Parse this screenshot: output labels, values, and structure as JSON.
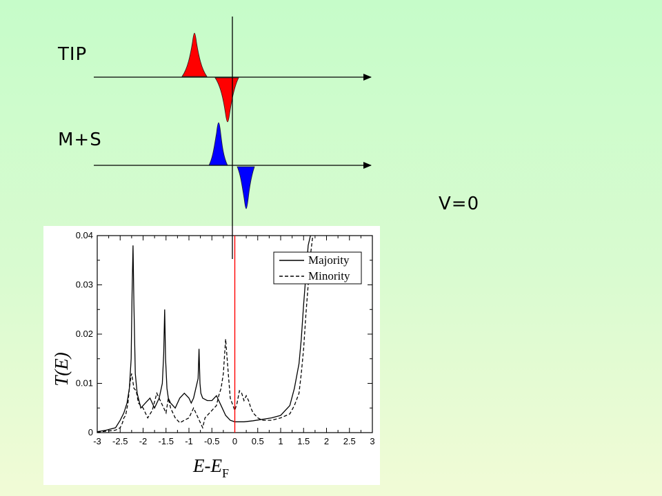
{
  "labels": {
    "tip": "TIP",
    "ms": "M+S",
    "bias": "V=0"
  },
  "colors": {
    "tip_lobes": "#ff0000",
    "ms_lobes": "#0000ff",
    "fermi_line": "#ff0000",
    "background_top": "#c6fcc9",
    "background_bottom": "#f1fbd6"
  },
  "chart_data": {
    "type": "line",
    "title": "",
    "xlabel_main": "E-E",
    "xlabel_sub": "F",
    "ylabel": "T(E)",
    "xlim": [
      -3,
      3
    ],
    "ylim": [
      0,
      0.04
    ],
    "xticks": [
      "-3",
      "-2.5",
      "-2",
      "-1.5",
      "-1",
      "-0.5",
      "0",
      "0.5",
      "1",
      "1.5",
      "2",
      "2.5",
      "3"
    ],
    "yticks": [
      "0",
      "0.01",
      "0.02",
      "0.03",
      "0.04"
    ],
    "legend_position": "top-right",
    "grid": false,
    "series": [
      {
        "name": "Majority",
        "style": "solid",
        "x": [
          -3.0,
          -2.8,
          -2.6,
          -2.5,
          -2.42,
          -2.35,
          -2.3,
          -2.26,
          -2.24,
          -2.22,
          -2.2,
          -2.17,
          -2.13,
          -2.05,
          -1.95,
          -1.85,
          -1.75,
          -1.65,
          -1.58,
          -1.55,
          -1.53,
          -1.51,
          -1.48,
          -1.45,
          -1.4,
          -1.3,
          -1.2,
          -1.1,
          -1.0,
          -0.95,
          -0.9,
          -0.85,
          -0.8,
          -0.78,
          -0.76,
          -0.74,
          -0.7,
          -0.6,
          -0.5,
          -0.4,
          -0.3,
          -0.2,
          -0.1,
          0.0,
          0.2,
          0.4,
          0.6,
          0.8,
          1.0,
          1.2,
          1.3,
          1.4,
          1.45,
          1.5,
          1.55,
          1.6,
          1.65
        ],
        "y": [
          0.0002,
          0.0005,
          0.001,
          0.0025,
          0.004,
          0.006,
          0.009,
          0.015,
          0.028,
          0.038,
          0.026,
          0.012,
          0.008,
          0.005,
          0.006,
          0.007,
          0.005,
          0.007,
          0.01,
          0.016,
          0.025,
          0.015,
          0.009,
          0.007,
          0.006,
          0.005,
          0.007,
          0.008,
          0.007,
          0.006,
          0.007,
          0.009,
          0.011,
          0.017,
          0.01,
          0.008,
          0.007,
          0.0065,
          0.0065,
          0.0075,
          0.0055,
          0.0035,
          0.0025,
          0.0022,
          0.0022,
          0.0024,
          0.0027,
          0.003,
          0.0035,
          0.0055,
          0.009,
          0.014,
          0.019,
          0.026,
          0.032,
          0.038,
          0.04
        ]
      },
      {
        "name": "Minority",
        "style": "dashed",
        "x": [
          -3.0,
          -2.8,
          -2.6,
          -2.5,
          -2.45,
          -2.42,
          -2.38,
          -2.33,
          -2.3,
          -2.27,
          -2.25,
          -2.2,
          -2.15,
          -2.1,
          -2.0,
          -1.9,
          -1.8,
          -1.7,
          -1.6,
          -1.5,
          -1.45,
          -1.4,
          -1.3,
          -1.2,
          -1.1,
          -1.0,
          -0.9,
          -0.8,
          -0.7,
          -0.65,
          -0.6,
          -0.5,
          -0.4,
          -0.35,
          -0.3,
          -0.25,
          -0.2,
          -0.15,
          -0.1,
          0.0,
          0.05,
          0.1,
          0.15,
          0.2,
          0.25,
          0.3,
          0.35,
          0.4,
          0.5,
          0.6,
          0.8,
          1.0,
          1.2,
          1.3,
          1.4,
          1.45,
          1.5,
          1.55,
          1.6,
          1.65,
          1.7
        ],
        "y": [
          0.0001,
          0.0003,
          0.0005,
          0.001,
          0.002,
          0.003,
          0.0035,
          0.006,
          0.009,
          0.011,
          0.012,
          0.009,
          0.0085,
          0.006,
          0.005,
          0.003,
          0.0045,
          0.008,
          0.006,
          0.004,
          0.007,
          0.005,
          0.003,
          0.002,
          0.0025,
          0.003,
          0.005,
          0.003,
          0.001,
          0.003,
          0.0035,
          0.0045,
          0.0055,
          0.0075,
          0.009,
          0.012,
          0.019,
          0.013,
          0.007,
          0.0045,
          0.006,
          0.0085,
          0.008,
          0.0065,
          0.0075,
          0.0065,
          0.005,
          0.004,
          0.003,
          0.0025,
          0.0025,
          0.003,
          0.0038,
          0.0055,
          0.008,
          0.012,
          0.017,
          0.024,
          0.03,
          0.036,
          0.04
        ]
      }
    ]
  }
}
